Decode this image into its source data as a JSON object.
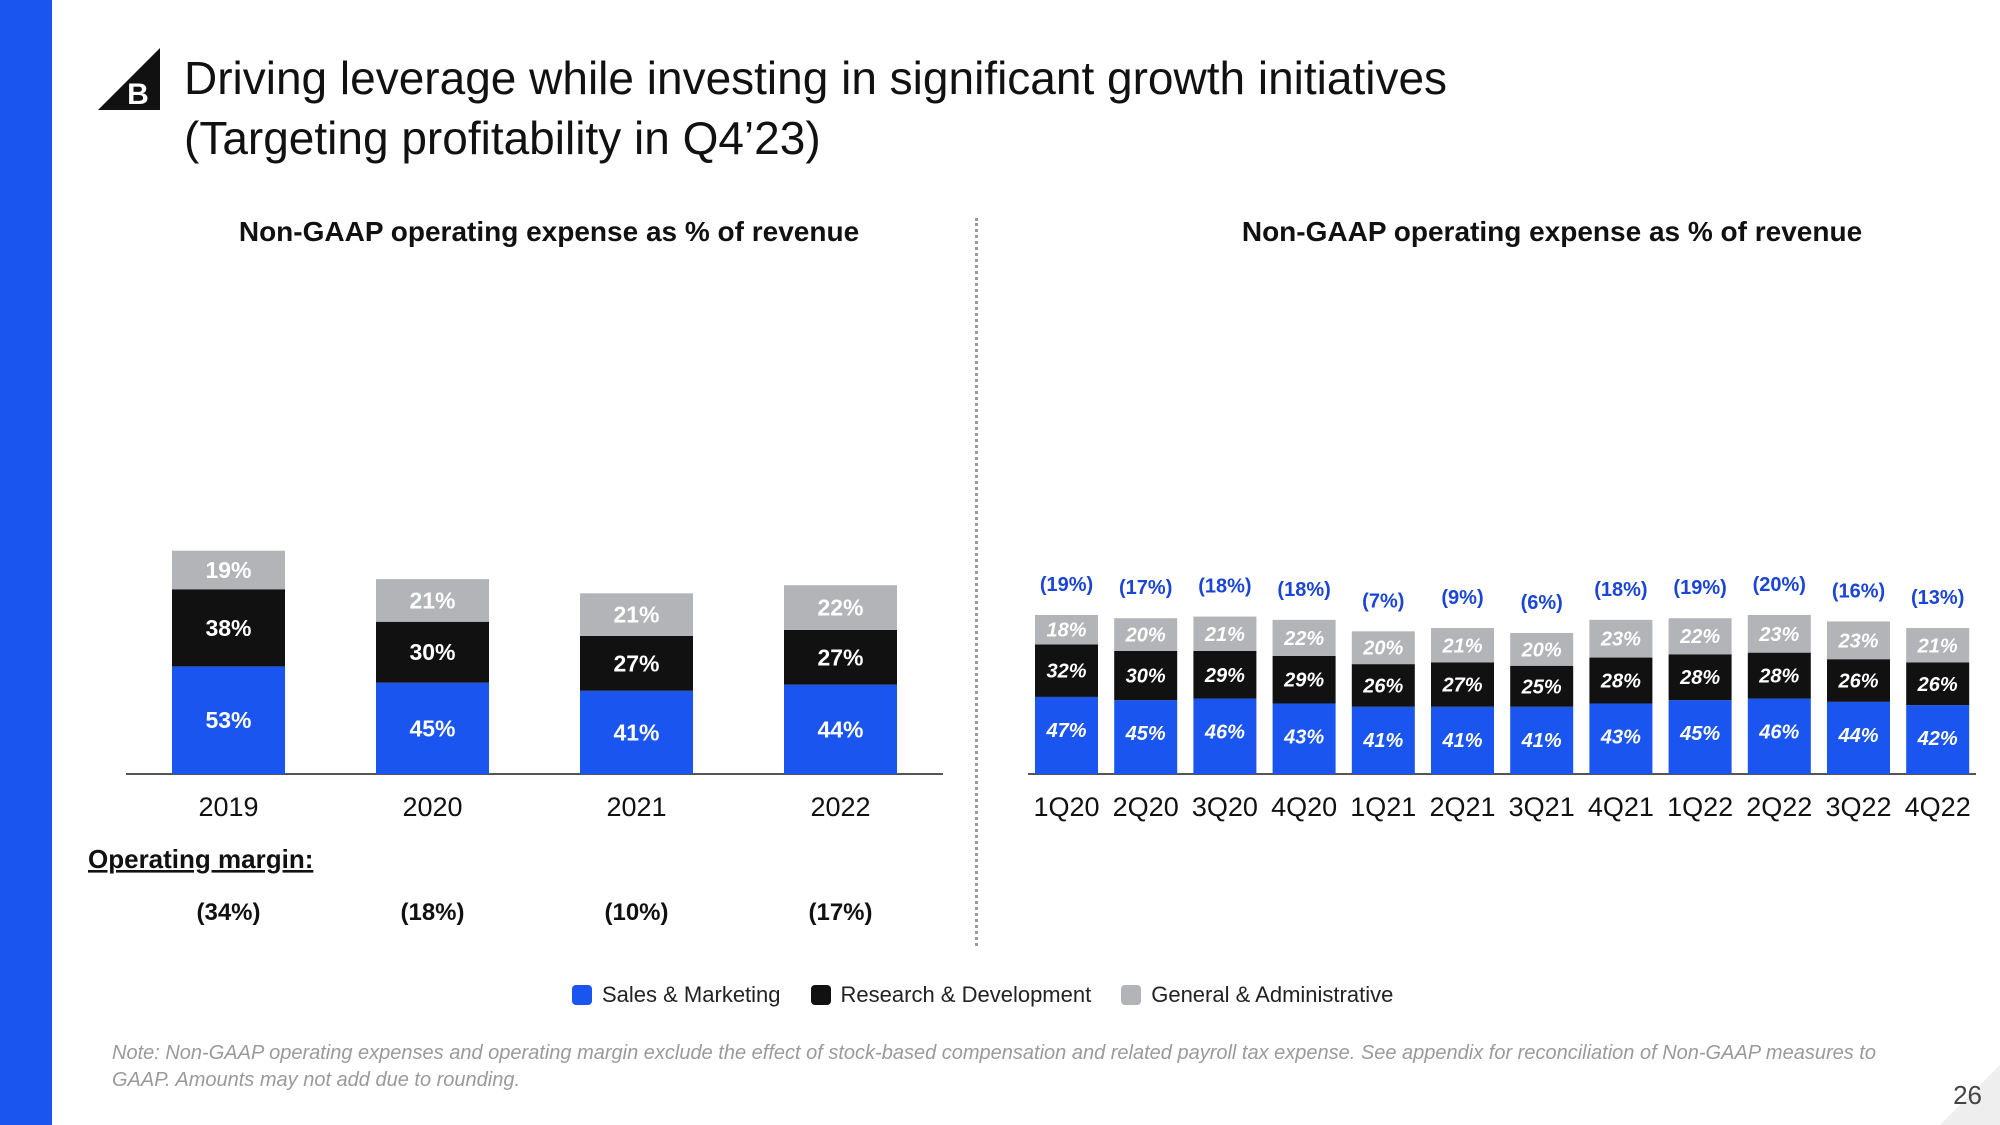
{
  "title": {
    "line1": "Driving leverage while investing in significant growth initiatives",
    "line2": "(Targeting profitability in Q4’23)"
  },
  "logo": {
    "icon": "bigcommerce-b-logo",
    "letter": "B"
  },
  "colors": {
    "sales_marketing": "#1a55f0",
    "research_development": "#111111",
    "general_admin": "#b3b4b8",
    "margin_text": "#1a45d6",
    "sidebar": "#1a55f0"
  },
  "chart_data": [
    {
      "type": "bar",
      "stacked": true,
      "title": "Non-GAAP operating expense as % of revenue",
      "categories": [
        "2019",
        "2020",
        "2021",
        "2022"
      ],
      "series": [
        {
          "name": "Sales & Marketing",
          "values": [
            53,
            45,
            41,
            44
          ],
          "labels": [
            "53%",
            "45%",
            "41%",
            "44%"
          ]
        },
        {
          "name": "Research & Development",
          "values": [
            38,
            30,
            27,
            27
          ],
          "labels": [
            "38%",
            "30%",
            "27%",
            "27%"
          ]
        },
        {
          "name": "General & Administrative",
          "values": [
            19,
            21,
            21,
            22
          ],
          "labels": [
            "19%",
            "21%",
            "21%",
            "22%"
          ]
        }
      ],
      "operating_margin_label": "Operating margin:",
      "operating_margin": [
        "(34%)",
        "(18%)",
        "(10%)",
        "(17%)"
      ],
      "ylim": [
        0,
        115
      ]
    },
    {
      "type": "bar",
      "stacked": true,
      "title": "Non-GAAP operating expense as % of revenue",
      "categories": [
        "1Q20",
        "2Q20",
        "3Q20",
        "4Q20",
        "1Q21",
        "2Q21",
        "3Q21",
        "4Q21",
        "1Q22",
        "2Q22",
        "3Q22",
        "4Q22"
      ],
      "series": [
        {
          "name": "Sales & Marketing",
          "values": [
            47,
            45,
            46,
            43,
            41,
            41,
            41,
            43,
            45,
            46,
            44,
            42
          ],
          "labels": [
            "47%",
            "45%",
            "46%",
            "43%",
            "41%",
            "41%",
            "41%",
            "43%",
            "45%",
            "46%",
            "44%",
            "42%"
          ]
        },
        {
          "name": "Research & Development",
          "values": [
            32,
            30,
            29,
            29,
            26,
            27,
            25,
            28,
            28,
            28,
            26,
            26
          ],
          "labels": [
            "32%",
            "30%",
            "29%",
            "29%",
            "26%",
            "27%",
            "25%",
            "28%",
            "28%",
            "28%",
            "26%",
            "26%"
          ]
        },
        {
          "name": "General & Administrative",
          "values": [
            18,
            20,
            21,
            22,
            20,
            21,
            20,
            23,
            22,
            23,
            23,
            21
          ],
          "labels": [
            "18%",
            "20%",
            "21%",
            "22%",
            "20%",
            "21%",
            "20%",
            "23%",
            "22%",
            "23%",
            "23%",
            "21%"
          ]
        }
      ],
      "operating_margin": [
        "(19%)",
        "(17%)",
        "(18%)",
        "(18%)",
        "(7%)",
        "(9%)",
        "(6%)",
        "(18%)",
        "(19%)",
        "(20%)",
        "(16%)",
        "(13%)"
      ],
      "ylim": [
        0,
        115
      ]
    }
  ],
  "legend": [
    {
      "label": "Sales & Marketing",
      "color": "#1a55f0"
    },
    {
      "label": "Research & Development",
      "color": "#111111"
    },
    {
      "label": "General & Administrative",
      "color": "#b3b4b8"
    }
  ],
  "note": "Note: Non-GAAP operating expenses and operating margin exclude the effect of stock-based compensation and related payroll tax expense. See appendix for reconciliation of Non-GAAP measures to GAAP. Amounts may not add due to rounding.",
  "page_number": "26"
}
